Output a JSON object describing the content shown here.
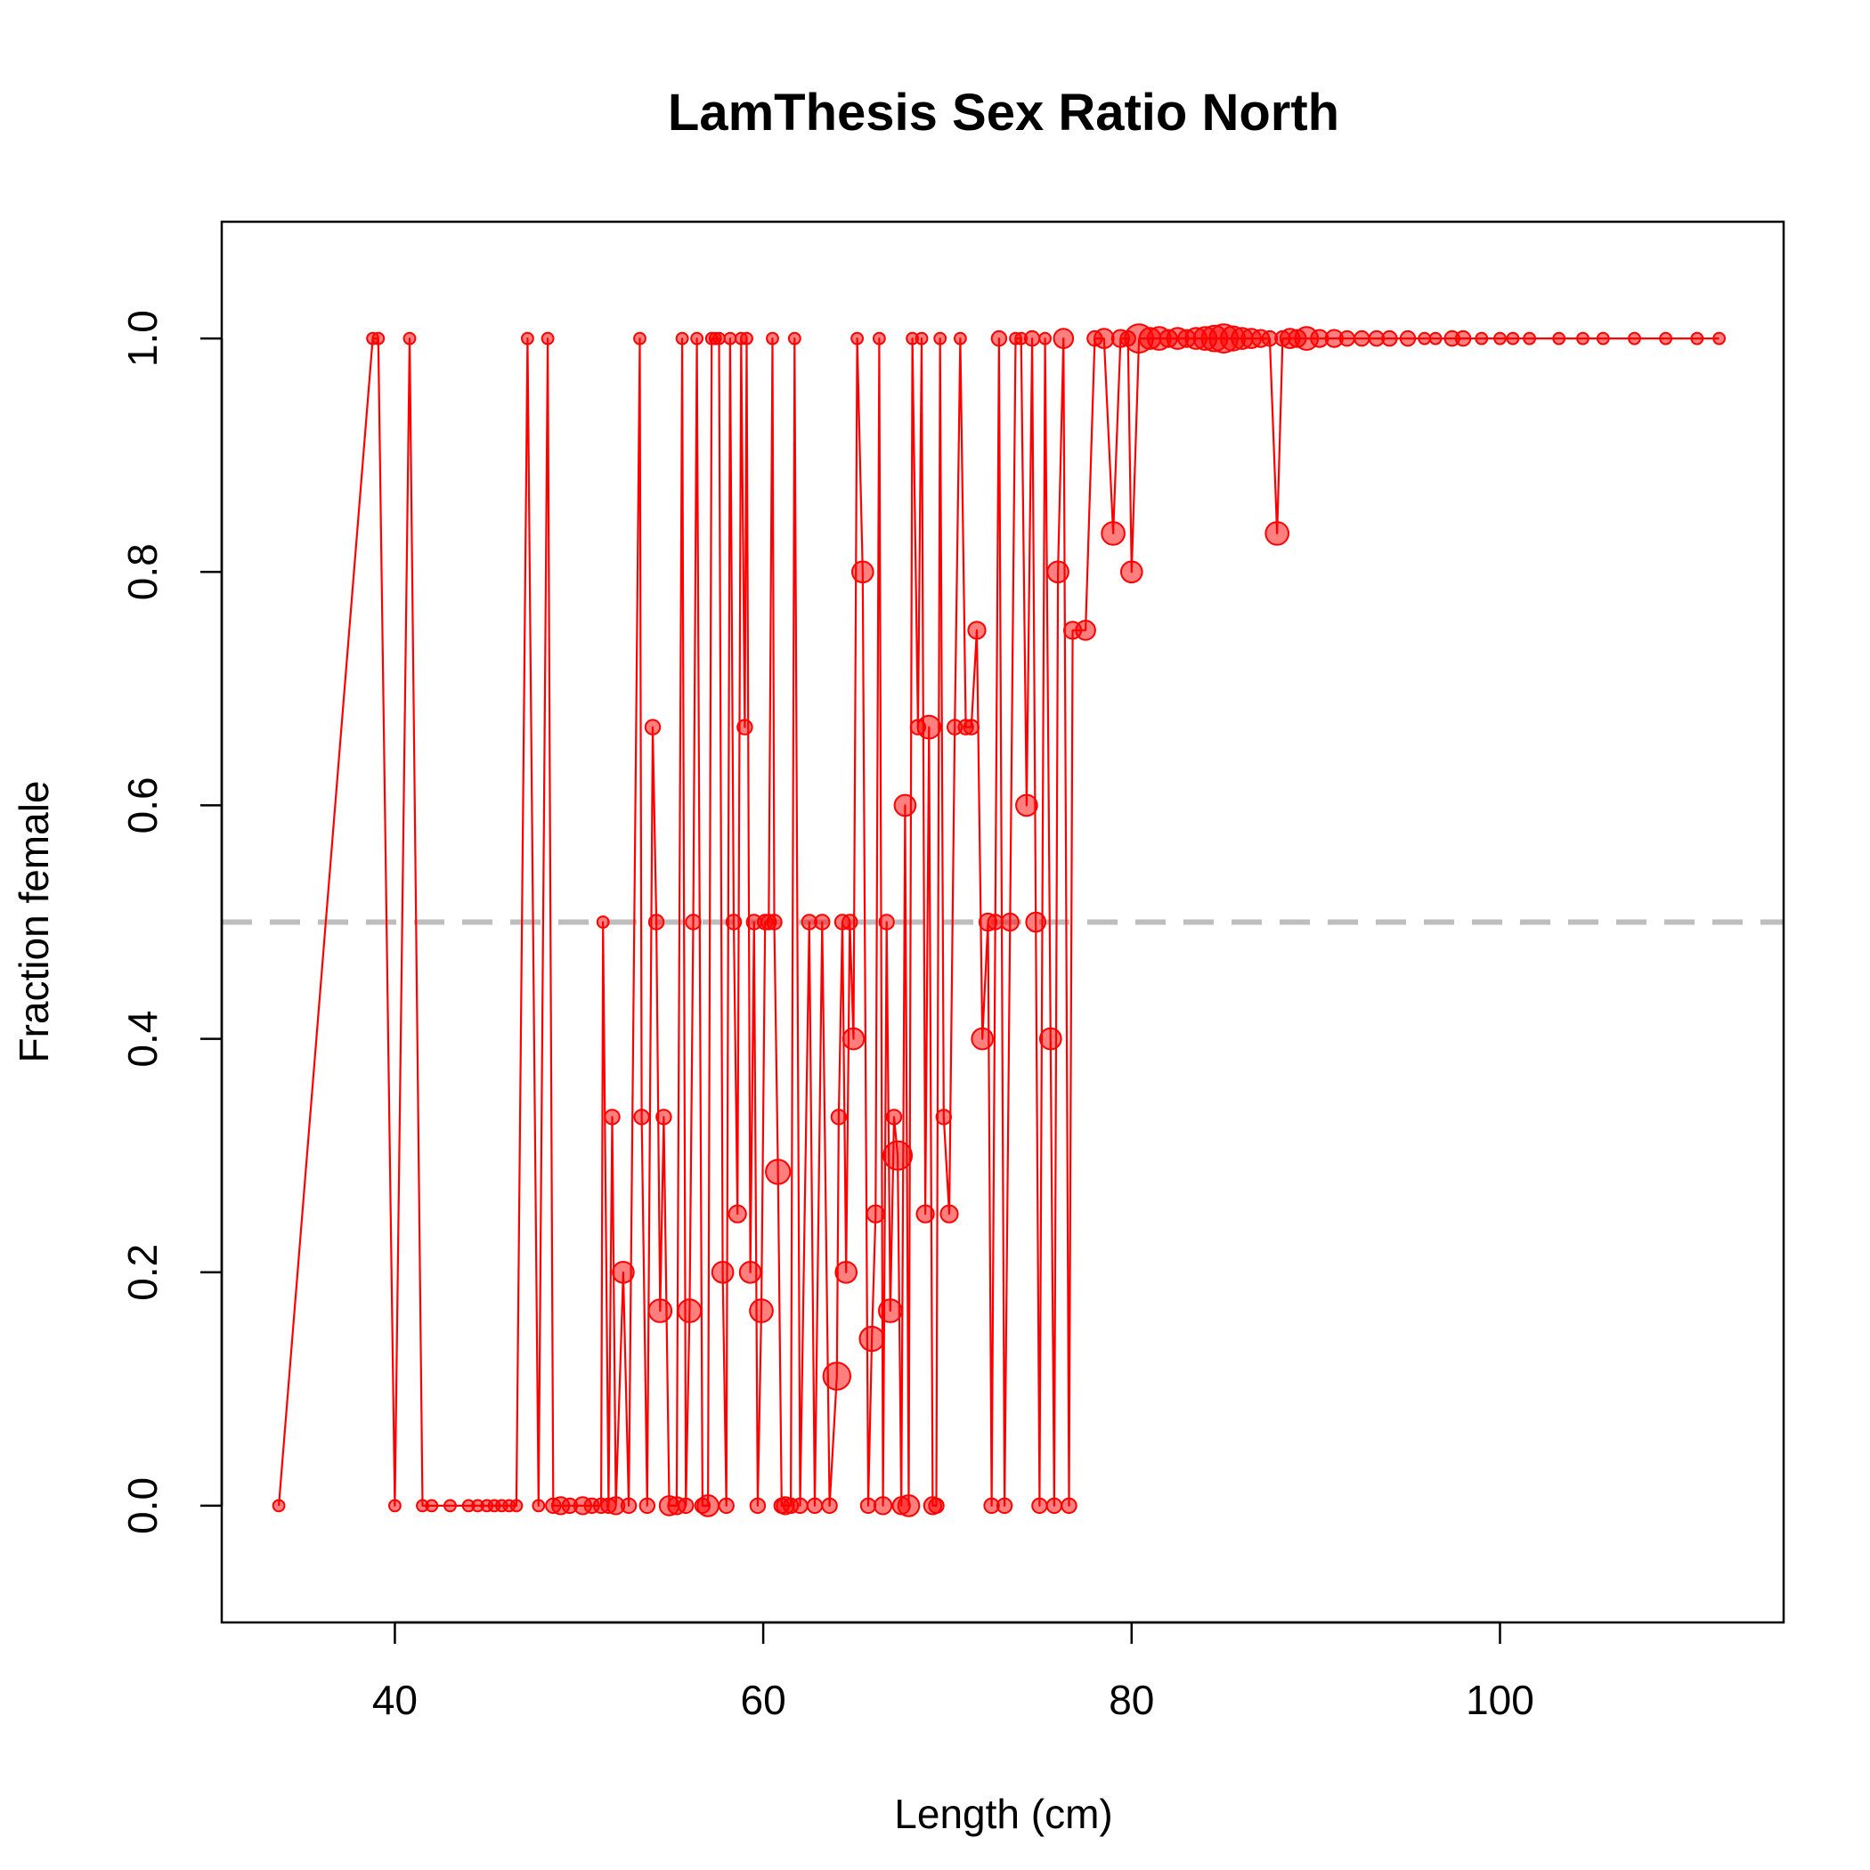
{
  "chart_data": {
    "type": "line",
    "title": "LamThesis Sex Ratio North",
    "xlabel": "Length (cm)",
    "ylabel": "Fraction female",
    "xlim": [
      30.6,
      115.4
    ],
    "ylim": [
      -0.1,
      1.1
    ],
    "xticks": [
      {
        "value": 40,
        "label": "40"
      },
      {
        "value": 60,
        "label": "60"
      },
      {
        "value": 80,
        "label": "80"
      },
      {
        "value": 100,
        "label": "100"
      }
    ],
    "yticks": [
      {
        "value": 0.0,
        "label": "0.0"
      },
      {
        "value": 0.2,
        "label": "0.2"
      },
      {
        "value": 0.4,
        "label": "0.4"
      },
      {
        "value": 0.6,
        "label": "0.6"
      },
      {
        "value": 0.8,
        "label": "0.8"
      },
      {
        "value": 1.0,
        "label": "1.0"
      }
    ],
    "reference_line": {
      "y": 0.5,
      "color": "#bebebe",
      "style": "dashed"
    },
    "series_color": "#ff0000",
    "marker_fill": "#ff000080",
    "grid": false,
    "series": [
      {
        "points": [
          [
            33.7,
            0,
            1
          ],
          [
            38.8,
            1,
            1
          ],
          [
            39.1,
            1,
            1
          ],
          [
            40.0,
            0,
            1
          ],
          [
            40.8,
            1,
            1
          ],
          [
            41.5,
            0,
            1
          ],
          [
            42.0,
            0,
            1
          ],
          [
            43.0,
            0,
            1
          ],
          [
            44.0,
            0,
            1
          ],
          [
            44.5,
            0,
            1
          ],
          [
            45.0,
            0,
            1
          ],
          [
            45.4,
            0,
            1
          ],
          [
            45.8,
            0,
            1
          ],
          [
            46.2,
            0,
            1
          ],
          [
            46.6,
            0,
            1
          ],
          [
            47.2,
            1,
            1
          ],
          [
            47.8,
            0,
            1
          ],
          [
            48.3,
            1,
            1
          ],
          [
            48.6,
            0,
            2
          ],
          [
            49.0,
            0,
            3
          ],
          [
            49.5,
            0,
            2
          ],
          [
            50.2,
            0,
            3
          ],
          [
            50.7,
            0,
            2
          ],
          [
            51.2,
            0,
            2
          ],
          [
            51.3,
            0.5,
            1
          ],
          [
            51.6,
            0,
            2
          ],
          [
            51.8,
            0.333,
            2
          ],
          [
            52.0,
            0,
            3
          ],
          [
            52.4,
            0.2,
            5
          ],
          [
            52.7,
            0,
            2
          ],
          [
            53.3,
            1,
            1
          ],
          [
            53.4,
            0.333,
            2
          ],
          [
            53.7,
            0,
            2
          ],
          [
            54.0,
            0.667,
            2
          ],
          [
            54.2,
            0.5,
            2
          ],
          [
            54.4,
            0.167,
            6
          ],
          [
            54.6,
            0.333,
            2
          ],
          [
            54.9,
            0,
            4
          ],
          [
            55.3,
            0,
            3
          ],
          [
            55.6,
            1,
            1
          ],
          [
            55.8,
            0,
            2
          ],
          [
            56.0,
            0.167,
            6
          ],
          [
            56.2,
            0.5,
            2
          ],
          [
            56.4,
            1,
            1
          ],
          [
            56.7,
            0,
            2
          ],
          [
            57.0,
            0,
            5
          ],
          [
            57.2,
            1,
            1
          ],
          [
            57.4,
            1,
            1
          ],
          [
            57.6,
            1,
            1
          ],
          [
            57.8,
            0.2,
            5
          ],
          [
            58.0,
            0,
            2
          ],
          [
            58.2,
            1,
            1
          ],
          [
            58.4,
            0.5,
            2
          ],
          [
            58.6,
            0.25,
            3
          ],
          [
            58.8,
            1,
            1
          ],
          [
            59.0,
            0.667,
            2
          ],
          [
            59.1,
            1,
            1
          ],
          [
            59.3,
            0.2,
            5
          ],
          [
            59.5,
            0.5,
            2
          ],
          [
            59.7,
            0,
            2
          ],
          [
            59.9,
            0.167,
            6
          ],
          [
            60.1,
            0.5,
            2
          ],
          [
            60.3,
            0.5,
            2
          ],
          [
            60.5,
            1,
            1
          ],
          [
            60.6,
            0.5,
            2
          ],
          [
            60.8,
            0.286,
            7
          ],
          [
            61.0,
            0,
            2
          ],
          [
            61.2,
            0,
            3
          ],
          [
            61.5,
            0,
            2
          ],
          [
            61.7,
            1,
            1
          ],
          [
            62.0,
            0,
            2
          ],
          [
            62.5,
            0.5,
            2
          ],
          [
            62.8,
            0,
            2
          ],
          [
            63.2,
            0.5,
            2
          ],
          [
            63.6,
            0,
            2
          ],
          [
            64.0,
            0.111,
            9
          ],
          [
            64.1,
            0.333,
            2
          ],
          [
            64.3,
            0.5,
            2
          ],
          [
            64.5,
            0.2,
            5
          ],
          [
            64.7,
            0.5,
            2
          ],
          [
            64.9,
            0.4,
            5
          ],
          [
            65.1,
            1,
            1
          ],
          [
            65.4,
            0.8,
            5
          ],
          [
            65.7,
            0,
            2
          ],
          [
            65.9,
            0.143,
            7
          ],
          [
            66.1,
            0.25,
            3
          ],
          [
            66.3,
            1,
            1
          ],
          [
            66.5,
            0,
            3
          ],
          [
            66.7,
            0.5,
            2
          ],
          [
            66.9,
            0.167,
            6
          ],
          [
            67.1,
            0.333,
            2
          ],
          [
            67.3,
            0.3,
            10
          ],
          [
            67.5,
            0,
            3
          ],
          [
            67.7,
            0.6,
            5
          ],
          [
            67.9,
            0,
            5
          ],
          [
            68.1,
            1,
            1
          ],
          [
            68.4,
            0.667,
            2
          ],
          [
            68.6,
            1,
            1
          ],
          [
            68.8,
            0.25,
            3
          ],
          [
            69.0,
            0.667,
            6
          ],
          [
            69.2,
            0,
            3
          ],
          [
            69.4,
            0,
            2
          ],
          [
            69.6,
            1,
            1
          ],
          [
            69.8,
            0.333,
            2
          ],
          [
            70.1,
            0.25,
            3
          ],
          [
            70.4,
            0.667,
            2
          ],
          [
            70.7,
            1,
            1
          ],
          [
            71.0,
            0.667,
            2
          ],
          [
            71.3,
            0.667,
            2
          ],
          [
            71.6,
            0.75,
            3
          ],
          [
            71.9,
            0.4,
            5
          ],
          [
            72.2,
            0.5,
            3
          ],
          [
            72.4,
            0,
            2
          ],
          [
            72.6,
            0.5,
            2
          ],
          [
            72.8,
            1,
            2
          ],
          [
            73.1,
            0,
            2
          ],
          [
            73.4,
            0.5,
            3
          ],
          [
            73.7,
            1,
            1
          ],
          [
            74.0,
            1,
            1
          ],
          [
            74.3,
            0.6,
            5
          ],
          [
            74.6,
            1,
            2
          ],
          [
            74.8,
            0.5,
            4
          ],
          [
            75.0,
            0,
            2
          ],
          [
            75.3,
            1,
            1
          ],
          [
            75.6,
            0.4,
            5
          ],
          [
            75.8,
            0,
            2
          ],
          [
            76.0,
            0.8,
            5
          ],
          [
            76.3,
            1,
            4
          ],
          [
            76.6,
            0,
            2
          ],
          [
            76.8,
            0.75,
            3
          ],
          [
            77.5,
            0.75,
            4
          ],
          [
            78.0,
            1,
            2
          ],
          [
            78.5,
            1,
            4
          ],
          [
            79.0,
            0.833,
            6
          ],
          [
            79.4,
            1,
            3
          ],
          [
            79.8,
            1,
            2
          ],
          [
            80.0,
            0.8,
            5
          ],
          [
            80.4,
            1,
            10
          ],
          [
            81.0,
            1,
            5
          ],
          [
            81.5,
            1,
            6
          ],
          [
            82.0,
            1,
            3
          ],
          [
            82.5,
            1,
            5
          ],
          [
            83.0,
            1,
            3
          ],
          [
            83.5,
            1,
            5
          ],
          [
            84.0,
            1,
            6
          ],
          [
            84.5,
            1,
            8
          ],
          [
            85.0,
            1,
            10
          ],
          [
            85.5,
            1,
            7
          ],
          [
            86.0,
            1,
            5
          ],
          [
            86.5,
            1,
            4
          ],
          [
            87.0,
            1,
            3
          ],
          [
            87.5,
            1,
            2
          ],
          [
            87.9,
            0.833,
            6
          ],
          [
            88.2,
            1,
            2
          ],
          [
            88.6,
            1,
            4
          ],
          [
            89.0,
            1,
            3
          ],
          [
            89.5,
            1,
            6
          ],
          [
            90.2,
            1,
            3
          ],
          [
            91.0,
            1,
            3
          ],
          [
            91.7,
            1,
            2
          ],
          [
            92.5,
            1,
            2
          ],
          [
            93.3,
            1,
            2
          ],
          [
            94.0,
            1,
            2
          ],
          [
            95.0,
            1,
            2
          ],
          [
            95.9,
            1,
            1
          ],
          [
            96.5,
            1,
            1
          ],
          [
            97.4,
            1,
            2
          ],
          [
            98.0,
            1,
            2
          ],
          [
            99.0,
            1,
            1
          ],
          [
            100.0,
            1,
            1
          ],
          [
            100.7,
            1,
            1
          ],
          [
            101.6,
            1,
            1
          ],
          [
            103.2,
            1,
            1
          ],
          [
            104.5,
            1,
            1
          ],
          [
            105.6,
            1,
            1
          ],
          [
            107.3,
            1,
            1
          ],
          [
            109.0,
            1,
            1
          ],
          [
            110.7,
            1,
            1
          ],
          [
            111.9,
            1,
            1
          ]
        ]
      }
    ]
  }
}
